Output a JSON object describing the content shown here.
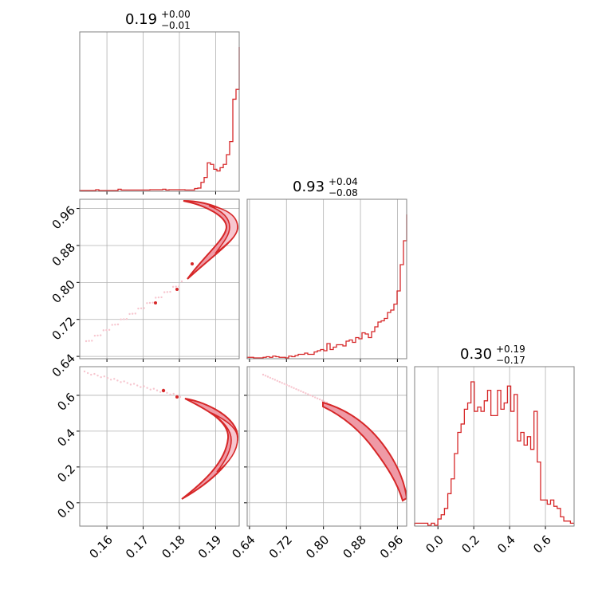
{
  "colors": {
    "series": "#d62728",
    "fill_light": "#f7c6cf",
    "fill_mid": "#ef9aa6",
    "grid": "#b0b0b0",
    "axes": "#808080"
  },
  "chart_data": [
    {
      "type": "histogram",
      "panel": "p1",
      "title": {
        "median": "0.19",
        "plus": "+0.00",
        "minus": "−0.01"
      },
      "xlim": [
        0.1525,
        0.1965
      ],
      "bin_edges_start": 0.1525,
      "bin_width": 0.00088,
      "counts": [
        0,
        0,
        0,
        0,
        0,
        0.5,
        0,
        0,
        0,
        0,
        0,
        0,
        0.8,
        0.3,
        0.3,
        0.3,
        0.3,
        0.3,
        0.3,
        0.3,
        0.3,
        0.3,
        0.5,
        0.5,
        0.5,
        0.5,
        0.8,
        0.3,
        0.5,
        0.5,
        0.5,
        0.5,
        0.5,
        0.3,
        0.3,
        0.3,
        1.2,
        1.5,
        5,
        8,
        17,
        16,
        13,
        12,
        14,
        16,
        22,
        30,
        56,
        62,
        80,
        82,
        88,
        70,
        70,
        80,
        85
      ]
    },
    {
      "type": "histogram",
      "panel": "p5",
      "title": {
        "median": "0.93",
        "plus": "+0.04",
        "minus": "−0.08"
      },
      "xlim": [
        0.635,
        0.98
      ],
      "bin_edges_start": 0.635,
      "bin_width": 0.0069,
      "counts": [
        0.5,
        0.5,
        0,
        0,
        0,
        0.5,
        1,
        0.5,
        1.5,
        1,
        0.5,
        0.5,
        0,
        1.5,
        1,
        2,
        3,
        3,
        4,
        3,
        3,
        5,
        6,
        7,
        6,
        12,
        7,
        9,
        11,
        11,
        10,
        14,
        15,
        13,
        17,
        16,
        21,
        20,
        17,
        22,
        26,
        30,
        31,
        33,
        38,
        40,
        45,
        56,
        78,
        98,
        120
      ]
    },
    {
      "type": "histogram",
      "panel": "p9",
      "title": {
        "median": "0.30",
        "plus": "+0.19",
        "minus": "−0.17"
      },
      "xlim": [
        -0.13,
        0.76
      ],
      "bin_edges_start": -0.13,
      "bin_width": 0.0185,
      "counts": [
        1,
        1,
        1,
        1,
        0,
        1,
        0,
        3,
        5,
        8,
        15,
        22,
        34,
        44,
        48,
        55,
        58,
        68,
        54,
        56,
        54,
        59,
        64,
        52,
        52,
        64,
        55,
        58,
        66,
        54,
        62,
        40,
        44,
        38,
        42,
        36,
        54,
        30,
        12,
        12,
        10,
        12,
        9,
        8,
        4,
        2,
        2,
        1
      ]
    },
    {
      "type": "scatter",
      "panel": "p4",
      "xlim": [
        0.1525,
        0.1965
      ],
      "ylim": [
        0.635,
        0.98
      ],
      "xlabel": "",
      "ylabel": "",
      "note": "crescent-shaped contour density"
    },
    {
      "type": "scatter",
      "panel": "p7",
      "xlim": [
        0.1525,
        0.1965
      ],
      "ylim": [
        -0.13,
        0.76
      ]
    },
    {
      "type": "scatter",
      "panel": "p8",
      "xlim": [
        0.635,
        0.98
      ],
      "ylim": [
        -0.13,
        0.76
      ]
    }
  ],
  "axes": {
    "x_col1_ticks": [
      {
        "label": "0.16",
        "v": 0.16
      },
      {
        "label": "0.17",
        "v": 0.17
      },
      {
        "label": "0.18",
        "v": 0.18
      },
      {
        "label": "0.19",
        "v": 0.19
      }
    ],
    "x_col2_ticks": [
      {
        "label": "0.64",
        "v": 0.64
      },
      {
        "label": "0.72",
        "v": 0.72
      },
      {
        "label": "0.80",
        "v": 0.8
      },
      {
        "label": "0.88",
        "v": 0.88
      },
      {
        "label": "0.96",
        "v": 0.96
      }
    ],
    "x_col3_ticks": [
      {
        "label": "0.0",
        "v": 0.0
      },
      {
        "label": "0.2",
        "v": 0.2
      },
      {
        "label": "0.4",
        "v": 0.4
      },
      {
        "label": "0.6",
        "v": 0.6
      }
    ],
    "y_row2_ticks": [
      {
        "label": "0.64",
        "v": 0.64
      },
      {
        "label": "0.72",
        "v": 0.72
      },
      {
        "label": "0.80",
        "v": 0.8
      },
      {
        "label": "0.88",
        "v": 0.88
      },
      {
        "label": "0.96",
        "v": 0.96
      }
    ],
    "y_row3_ticks": [
      {
        "label": "0.0",
        "v": 0.0
      },
      {
        "label": "0.2",
        "v": 0.2
      },
      {
        "label": "0.4",
        "v": 0.4
      },
      {
        "label": "0.6",
        "v": 0.6
      }
    ]
  }
}
